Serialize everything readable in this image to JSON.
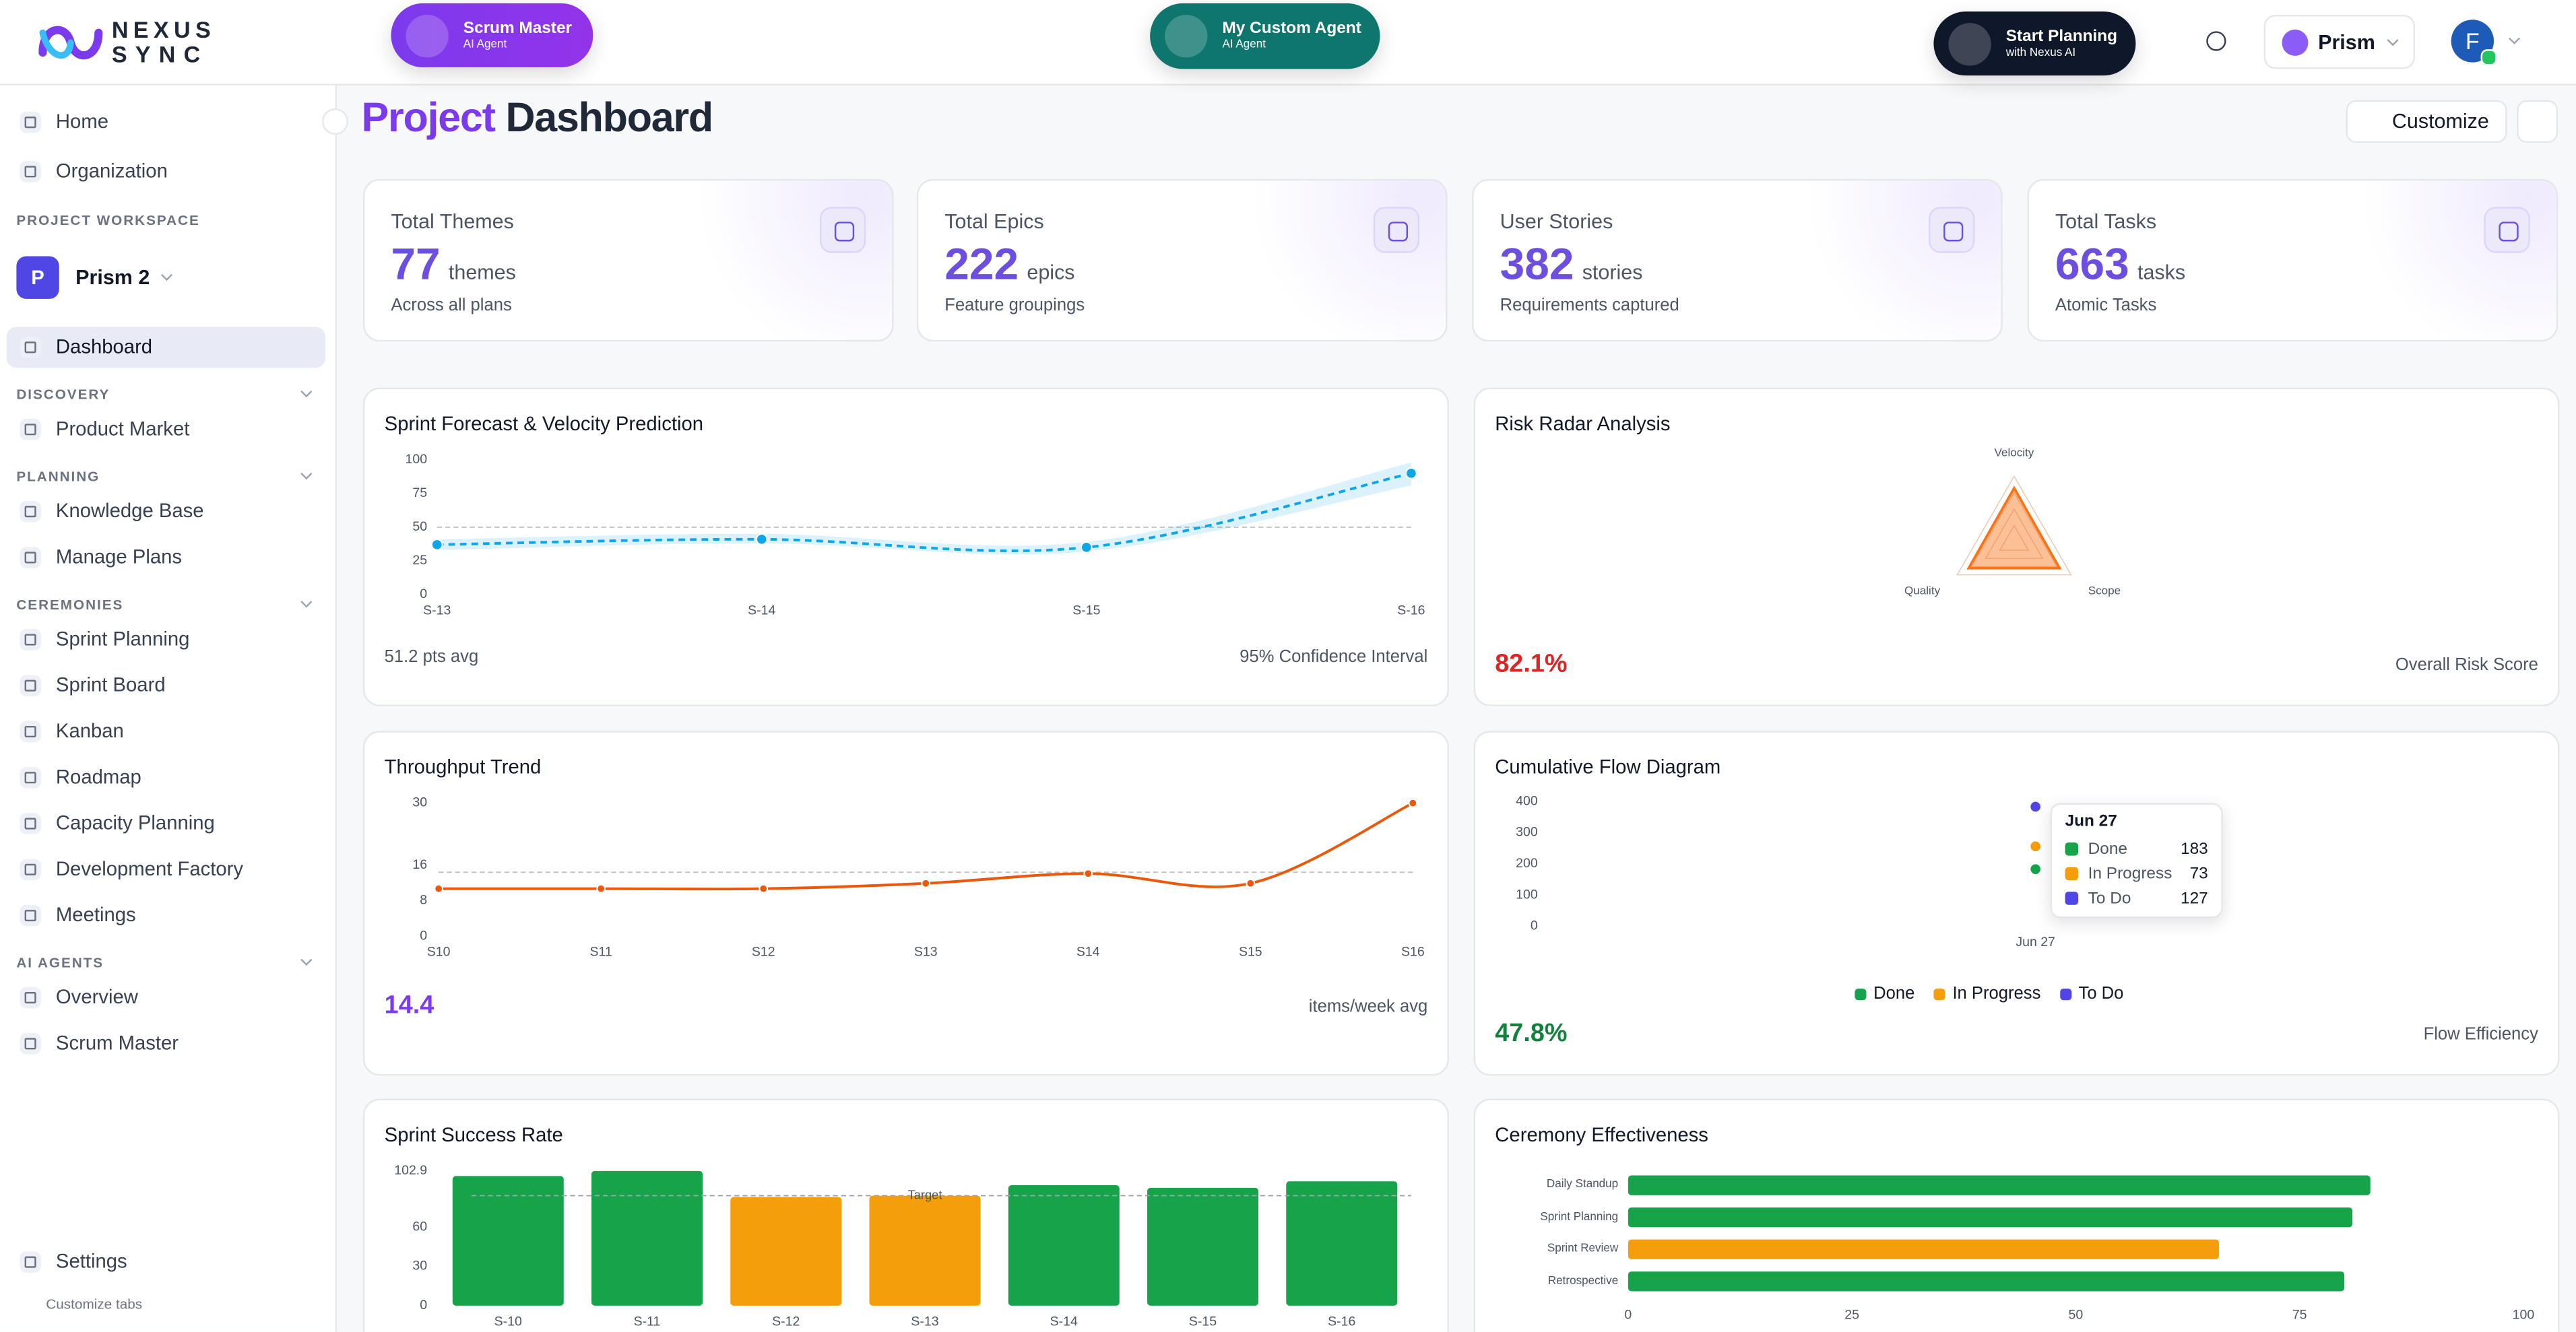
{
  "header": {
    "logo_top": "NEXUS",
    "logo_bottom": "SYNC",
    "agents": [
      {
        "name": "Scrum Master",
        "role": "AI Agent",
        "color": "#7c3aed"
      },
      {
        "name": "My Custom Agent",
        "role": "AI Agent",
        "color": "#0f766e"
      }
    ],
    "planning": {
      "title": "Start Planning",
      "subtitle": "with Nexus AI"
    },
    "workspace": "Prism",
    "avatar": "F"
  },
  "sidebar": {
    "top": [
      "Home",
      "Organization"
    ],
    "workspace_label": "PROJECT WORKSPACE",
    "project": {
      "initial": "P",
      "name": "Prism 2"
    },
    "active": "Dashboard",
    "sections": [
      {
        "title": "DISCOVERY",
        "items": [
          "Product Market"
        ]
      },
      {
        "title": "PLANNING",
        "items": [
          "Knowledge Base",
          "Manage Plans"
        ]
      },
      {
        "title": "CEREMONIES",
        "items": [
          "Sprint Planning",
          "Sprint Board",
          "Kanban",
          "Roadmap",
          "Capacity Planning",
          "Development Factory",
          "Meetings"
        ]
      },
      {
        "title": "AI AGENTS",
        "items": [
          "Overview",
          "Scrum Master"
        ]
      }
    ],
    "settings": "Settings",
    "customize": "Customize tabs"
  },
  "dashboard": {
    "title_accent": "Project",
    "title": "Dashboard",
    "customize": "Customize"
  },
  "stats": [
    {
      "label": "Total Themes",
      "value": 77,
      "unit": "themes",
      "note": "Across all plans"
    },
    {
      "label": "Total Epics",
      "value": 222,
      "unit": "epics",
      "note": "Feature groupings"
    },
    {
      "label": "User Stories",
      "value": 382,
      "unit": "stories",
      "note": "Requirements captured"
    },
    {
      "label": "Total Tasks",
      "value": 663,
      "unit": "tasks",
      "note": "Atomic Tasks"
    }
  ],
  "charts": [
    {
      "type": "line",
      "title": "Sprint Forecast & Velocity Prediction",
      "categories": [
        "S-13",
        "S-14",
        "S-15",
        "S-16"
      ],
      "values": [
        37,
        41,
        35,
        90
      ],
      "band": {
        "lower": [
          33,
          38,
          32,
          81
        ],
        "upper": [
          41,
          45,
          39,
          98
        ]
      },
      "color": "#0ea5e9",
      "dashed": true,
      "reference": 50,
      "ylim": [
        0,
        100
      ],
      "yticks": [
        0,
        25,
        50,
        75,
        100
      ],
      "footer": [
        "51.2 pts avg",
        "95% Confidence Interval"
      ]
    },
    {
      "type": "radar",
      "title": "Risk Radar Analysis",
      "axes": [
        "Velocity",
        "Scope",
        "Quality"
      ],
      "values": [
        82,
        80,
        80
      ],
      "rlim": [
        0,
        100
      ],
      "color": "#f97316",
      "footer": [
        "82.1%",
        "Overall Risk Score"
      ],
      "footer_color": "#dc2626"
    },
    {
      "type": "line",
      "title": "Throughput Trend",
      "categories": [
        "S10",
        "S11",
        "S12",
        "S13",
        "S14",
        "S15",
        "S16"
      ],
      "values": [
        10.7,
        10.7,
        10.7,
        11.9,
        14.1,
        11.9,
        30
      ],
      "color": "#ea580c",
      "dashed": false,
      "reference": 14.4,
      "ylim": [
        0,
        30
      ],
      "yticks": [
        0,
        8,
        16,
        30
      ],
      "footer": [
        "14.4",
        "items/week avg"
      ],
      "footer_color": "#7c3aed"
    },
    {
      "type": "cumulative-flow",
      "title": "Cumulative Flow Diagram",
      "categories": [
        "Jun 27"
      ],
      "series": [
        {
          "name": "Done",
          "color": "#16a34a",
          "values": [
            183
          ]
        },
        {
          "name": "In Progress",
          "color": "#f59e0b",
          "values": [
            73
          ]
        },
        {
          "name": "To Do",
          "color": "#4f46e5",
          "values": [
            127
          ]
        }
      ],
      "ylim": [
        0,
        400
      ],
      "yticks": [
        0,
        100,
        200,
        300,
        400
      ],
      "footer": [
        "47.8%",
        "Flow Efficiency"
      ],
      "footer_color": "#15803d"
    },
    {
      "type": "bar",
      "title": "Sprint Success Rate",
      "categories": [
        "S-10",
        "S-11",
        "S-12",
        "S-13",
        "S-14",
        "S-15",
        "S-16"
      ],
      "values": [
        99,
        102.9,
        83,
        84,
        92,
        90,
        95
      ],
      "colors": [
        "#16a34a",
        "#16a34a",
        "#f59e0b",
        "#f59e0b",
        "#16a34a",
        "#16a34a",
        "#16a34a"
      ],
      "reference": {
        "value": 84,
        "label": "Target"
      },
      "ylim": [
        0,
        102.9
      ],
      "yticks": [
        0,
        30,
        60,
        102.9
      ]
    },
    {
      "type": "hbar",
      "title": "Ceremony Effectiveness",
      "categories": [
        "Daily Standup",
        "Sprint Planning",
        "Sprint Review",
        "Retrospective"
      ],
      "values": [
        82.9,
        80.9,
        66,
        80
      ],
      "colors": [
        "#16a34a",
        "#16a34a",
        "#f59e0b",
        "#16a34a"
      ],
      "xlim": [
        0,
        100
      ],
      "xticks": [
        0,
        25,
        50,
        75,
        100
      ]
    }
  ]
}
